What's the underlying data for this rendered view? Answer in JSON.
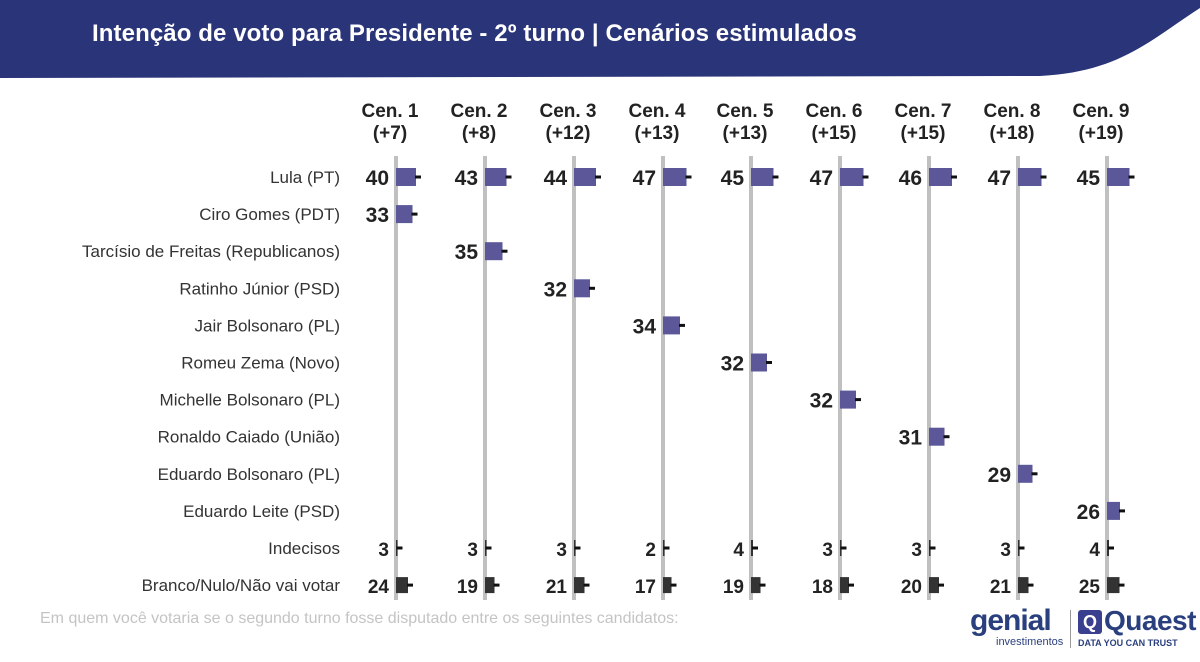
{
  "header": {
    "title": "Intenção de voto para Presidente - 2º turno | Cenários estimulados",
    "color": "#2a3478"
  },
  "footnote": "Em quem você votaria se o segundo turno fosse disputado entre os seguintes candidatos:",
  "logos": {
    "genial": "genial",
    "genial_sub": "investimentos",
    "quaest": "Quaest",
    "quaest_mark": "Q",
    "quaest_sub": "DATA YOU CAN TRUST"
  },
  "chart_data": {
    "type": "bar",
    "bar_color": "#5b5799",
    "other_color": "#333333",
    "axis_color": "#c0c0c0",
    "scenarios": [
      {
        "label": "Cen. 1",
        "margin": "(+7)"
      },
      {
        "label": "Cen. 2",
        "margin": "(+8)"
      },
      {
        "label": "Cen. 3",
        "margin": "(+12)"
      },
      {
        "label": "Cen. 4",
        "margin": "(+13)"
      },
      {
        "label": "Cen. 5",
        "margin": "(+13)"
      },
      {
        "label": "Cen. 6",
        "margin": "(+15)"
      },
      {
        "label": "Cen. 7",
        "margin": "(+15)"
      },
      {
        "label": "Cen. 8",
        "margin": "(+18)"
      },
      {
        "label": "Cen. 9",
        "margin": "(+19)"
      }
    ],
    "rows": [
      {
        "name": "Lula (PT)",
        "kind": "candidate",
        "values": [
          40,
          43,
          44,
          47,
          45,
          47,
          46,
          47,
          45
        ]
      },
      {
        "name": "Ciro Gomes (PDT)",
        "kind": "candidate",
        "values": [
          33,
          null,
          null,
          null,
          null,
          null,
          null,
          null,
          null
        ]
      },
      {
        "name": "Tarcísio de Freitas (Republicanos)",
        "kind": "candidate",
        "values": [
          null,
          35,
          null,
          null,
          null,
          null,
          null,
          null,
          null
        ]
      },
      {
        "name": "Ratinho Júnior (PSD)",
        "kind": "candidate",
        "values": [
          null,
          null,
          32,
          null,
          null,
          null,
          null,
          null,
          null
        ]
      },
      {
        "name": "Jair Bolsonaro (PL)",
        "kind": "candidate",
        "values": [
          null,
          null,
          null,
          34,
          null,
          null,
          null,
          null,
          null
        ]
      },
      {
        "name": "Romeu Zema (Novo)",
        "kind": "candidate",
        "values": [
          null,
          null,
          null,
          null,
          32,
          null,
          null,
          null,
          null
        ]
      },
      {
        "name": "Michelle Bolsonaro (PL)",
        "kind": "candidate",
        "values": [
          null,
          null,
          null,
          null,
          null,
          32,
          null,
          null,
          null
        ]
      },
      {
        "name": "Ronaldo Caiado (União)",
        "kind": "candidate",
        "values": [
          null,
          null,
          null,
          null,
          null,
          null,
          31,
          null,
          null
        ]
      },
      {
        "name": "Eduardo Bolsonaro (PL)",
        "kind": "candidate",
        "values": [
          null,
          null,
          null,
          null,
          null,
          null,
          null,
          29,
          null
        ]
      },
      {
        "name": "Eduardo Leite (PSD)",
        "kind": "candidate",
        "values": [
          null,
          null,
          null,
          null,
          null,
          null,
          null,
          null,
          26
        ]
      },
      {
        "name": "Indecisos",
        "kind": "other",
        "values": [
          3,
          3,
          3,
          2,
          4,
          3,
          3,
          3,
          4
        ]
      },
      {
        "name": "Branco/Nulo/Não vai votar",
        "kind": "other",
        "values": [
          24,
          19,
          21,
          17,
          19,
          18,
          20,
          21,
          25
        ]
      }
    ]
  }
}
